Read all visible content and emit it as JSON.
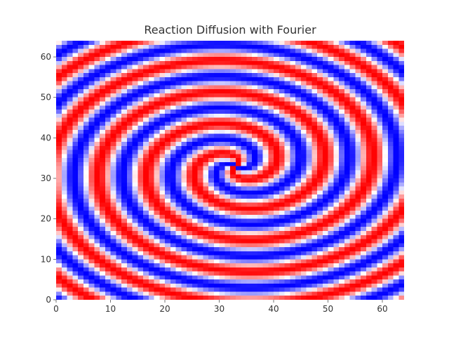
{
  "chart_data": {
    "type": "heatmap",
    "title": "Reaction Diffusion with Fourier",
    "xlabel": "",
    "ylabel": "",
    "xlim": [
      0,
      64
    ],
    "ylim": [
      0,
      64
    ],
    "grid_size": [
      64,
      64
    ],
    "x_ticks": [
      0,
      10,
      20,
      30,
      40,
      50,
      60
    ],
    "y_ticks": [
      0,
      10,
      20,
      30,
      40,
      50,
      60
    ],
    "colormap": [
      "#0000ff",
      "#ffffff",
      "#ff0000"
    ],
    "grid": false,
    "pattern": "two-armed spiral centered near (33, 33)"
  }
}
